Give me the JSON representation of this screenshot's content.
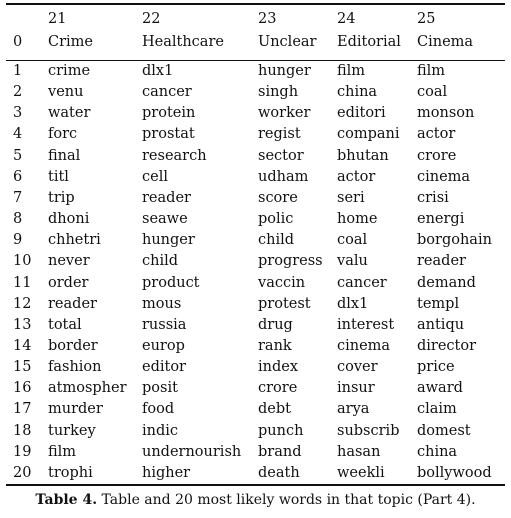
{
  "header": {
    "index_label": "0",
    "topic_numbers": [
      "21",
      "22",
      "23",
      "24",
      "25"
    ],
    "topic_names": [
      "Crime",
      "Healthcare",
      "Unclear",
      "Editorial",
      "Cinema"
    ]
  },
  "rows": [
    [
      "1",
      "crime",
      "dlx1",
      "hunger",
      "film",
      "film"
    ],
    [
      "2",
      "venu",
      "cancer",
      "singh",
      "china",
      "coal"
    ],
    [
      "3",
      "water",
      "protein",
      "worker",
      "editori",
      "monson"
    ],
    [
      "4",
      "forc",
      "prostat",
      "regist",
      "compani",
      "actor"
    ],
    [
      "5",
      "final",
      "research",
      "sector",
      "bhutan",
      "crore"
    ],
    [
      "6",
      "titl",
      "cell",
      "udham",
      "actor",
      "cinema"
    ],
    [
      "7",
      "trip",
      "reader",
      "score",
      "seri",
      "crisi"
    ],
    [
      "8",
      "dhoni",
      "seawe",
      "polic",
      "home",
      "energi"
    ],
    [
      "9",
      "chhetri",
      "hunger",
      "child",
      "coal",
      "borgohain"
    ],
    [
      "10",
      "never",
      "child",
      "progress",
      "valu",
      "reader"
    ],
    [
      "11",
      "order",
      "product",
      "vaccin",
      "cancer",
      "demand"
    ],
    [
      "12",
      "reader",
      "mous",
      "protest",
      "dlx1",
      "templ"
    ],
    [
      "13",
      "total",
      "russia",
      "drug",
      "interest",
      "antiqu"
    ],
    [
      "14",
      "border",
      "europ",
      "rank",
      "cinema",
      "director"
    ],
    [
      "15",
      "fashion",
      "editor",
      "index",
      "cover",
      "price"
    ],
    [
      "16",
      "atmospher",
      "posit",
      "crore",
      "insur",
      "award"
    ],
    [
      "17",
      "murder",
      "food",
      "debt",
      "arya",
      "claim"
    ],
    [
      "18",
      "turkey",
      "indic",
      "punch",
      "subscrib",
      "domest"
    ],
    [
      "19",
      "film",
      "undernourish",
      "brand",
      "hasan",
      "china"
    ],
    [
      "20",
      "trophi",
      "higher",
      "death",
      "weekli",
      "bollywood"
    ]
  ],
  "caption": {
    "label": "Table 4.",
    "text": " Table and 20 most likely words in that topic (Part 4)."
  }
}
